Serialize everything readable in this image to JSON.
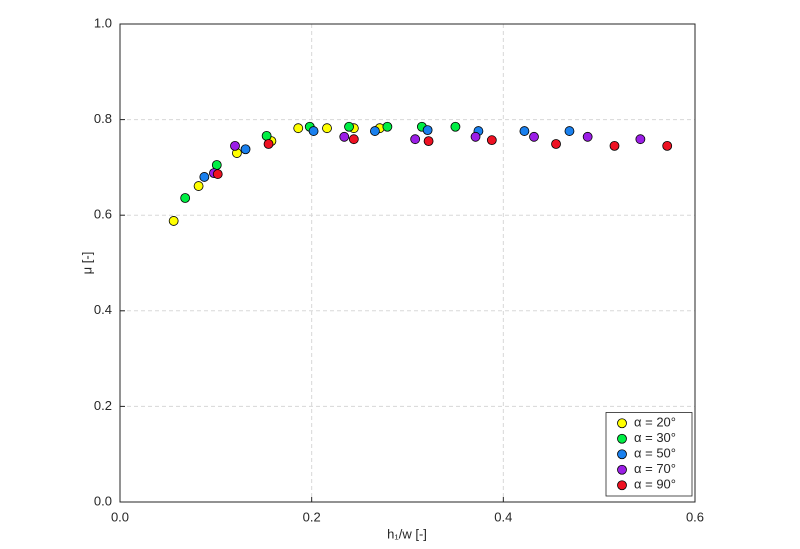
{
  "chart_data": {
    "type": "scatter",
    "x_label": "h₁/w [-]",
    "y_label": "μ [-]",
    "xlim": [
      0,
      0.6
    ],
    "ylim": [
      0,
      1.0
    ],
    "xticks": [
      {
        "value": 0,
        "label": "0.0"
      },
      0.2,
      0.4,
      0.6
    ],
    "yticks": [
      {
        "value": 0,
        "label": "0.0"
      },
      0.2,
      0.4,
      0.6,
      0.8,
      {
        "value": 1.0,
        "label": "1.0"
      }
    ],
    "grid": true,
    "legend": "lower right",
    "series": [
      {
        "name": "α = 20°",
        "color": "#ffff00",
        "x": [
          0.056,
          0.082,
          0.122,
          0.158,
          0.186,
          0.216,
          0.244,
          0.271
        ],
        "values": [
          0.588,
          0.661,
          0.73,
          0.755,
          0.782,
          0.782,
          0.782,
          0.782
        ]
      },
      {
        "name": "α = 30°",
        "color": "#00ee44",
        "x": [
          0.068,
          0.101,
          0.153,
          0.198,
          0.239,
          0.279,
          0.315,
          0.35
        ],
        "values": [
          0.636,
          0.705,
          0.766,
          0.785,
          0.785,
          0.785,
          0.785,
          0.785
        ]
      },
      {
        "name": "α = 50°",
        "color": "#1a80ee",
        "x": [
          0.088,
          0.131,
          0.202,
          0.266,
          0.321,
          0.374,
          0.422,
          0.469
        ],
        "values": [
          0.68,
          0.738,
          0.776,
          0.776,
          0.778,
          0.776,
          0.776,
          0.776
        ]
      },
      {
        "name": "α = 70°",
        "color": "#9b1ee6",
        "x": [
          0.098,
          0.12,
          0.234,
          0.308,
          0.371,
          0.432,
          0.488,
          0.543
        ],
        "values": [
          0.688,
          0.745,
          0.764,
          0.759,
          0.764,
          0.764,
          0.764,
          0.759
        ]
      },
      {
        "name": "α = 90°",
        "color": "#ee1122",
        "x": [
          0.102,
          0.155,
          0.244,
          0.322,
          0.388,
          0.455,
          0.516,
          0.571
        ],
        "values": [
          0.686,
          0.749,
          0.759,
          0.755,
          0.757,
          0.749,
          0.745,
          0.745
        ]
      }
    ]
  }
}
